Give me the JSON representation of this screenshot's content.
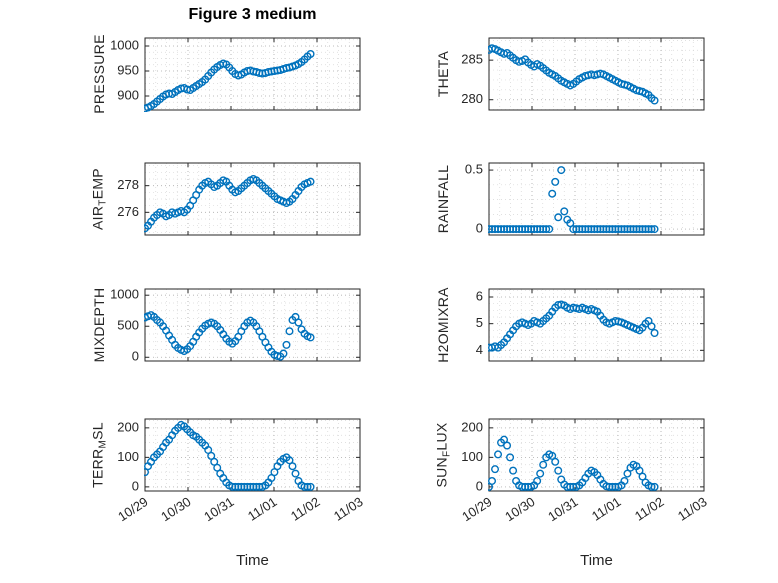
{
  "figure": {
    "title": "Figure 3 medium",
    "xlabel": "Time",
    "marker_color": "#0072BD",
    "axis_color": "#262626",
    "grid_color": "#b0b0b0",
    "minor_grid_color": "#d6d6d6"
  },
  "x_ticks": [
    0,
    1,
    2,
    3,
    4,
    5
  ],
  "x_tick_labels": [
    "10/29",
    "10/30",
    "10/31",
    "11/01",
    "11/02",
    "11/03"
  ],
  "x_days": [
    0.0,
    0.07,
    0.14,
    0.21,
    0.28,
    0.35,
    0.42,
    0.49,
    0.56,
    0.63,
    0.7,
    0.77,
    0.84,
    0.91,
    0.98,
    1.05,
    1.12,
    1.19,
    1.26,
    1.33,
    1.4,
    1.47,
    1.54,
    1.61,
    1.68,
    1.75,
    1.82,
    1.89,
    1.96,
    2.03,
    2.1,
    2.17,
    2.24,
    2.31,
    2.38,
    2.45,
    2.52,
    2.59,
    2.66,
    2.73,
    2.8,
    2.87,
    2.94,
    3.01,
    3.08,
    3.15,
    3.22,
    3.29,
    3.36,
    3.43,
    3.5,
    3.57,
    3.64,
    3.71,
    3.78,
    3.85
  ],
  "chart_data": [
    {
      "key": "pressure",
      "type": "scatter",
      "ylabel": "PRESSURE",
      "ylabel_segments": [
        {
          "text": "PRESSURE",
          "sub": false
        }
      ],
      "row": 0,
      "col": 0,
      "xlim": [
        0,
        5
      ],
      "ylim": [
        872,
        1016
      ],
      "yticks": [
        900,
        950,
        1000
      ],
      "show_xticklabels": false,
      "y": [
        875,
        877,
        880,
        884,
        889,
        894,
        899,
        903,
        905,
        904,
        908,
        912,
        915,
        916,
        913,
        912,
        916,
        920,
        924,
        928,
        933,
        940,
        947,
        953,
        958,
        962,
        965,
        963,
        957,
        950,
        944,
        941,
        943,
        947,
        950,
        951,
        949,
        948,
        946,
        945,
        946,
        948,
        949,
        950,
        951,
        952,
        954,
        956,
        957,
        959,
        961,
        964,
        968,
        973,
        979,
        984
      ]
    },
    {
      "key": "theta",
      "type": "scatter",
      "ylabel": "THETA",
      "ylabel_segments": [
        {
          "text": "THETA",
          "sub": false
        }
      ],
      "row": 0,
      "col": 1,
      "xlim": [
        0,
        5
      ],
      "ylim": [
        278.7,
        287.8
      ],
      "yticks": [
        280,
        285
      ],
      "show_xticklabels": false,
      "y": [
        286.3,
        286.5,
        286.4,
        286.2,
        286.0,
        285.8,
        285.9,
        285.6,
        285.3,
        285.0,
        284.8,
        284.9,
        285.1,
        284.7,
        284.4,
        284.2,
        284.5,
        284.3,
        284.0,
        283.7,
        283.4,
        283.2,
        283.0,
        282.7,
        282.4,
        282.2,
        282.0,
        281.8,
        282.0,
        282.3,
        282.6,
        282.8,
        283.0,
        283.1,
        283.2,
        283.1,
        283.2,
        283.3,
        283.2,
        283.0,
        282.8,
        282.6,
        282.4,
        282.2,
        282.0,
        281.9,
        281.8,
        281.6,
        281.4,
        281.2,
        281.1,
        281.0,
        280.8,
        280.6,
        280.2,
        279.9
      ]
    },
    {
      "key": "airtemp",
      "type": "scatter",
      "ylabel": "AIR_TEMP",
      "ylabel_segments": [
        {
          "text": "AIR",
          "sub": false
        },
        {
          "text": "T",
          "sub": true
        },
        {
          "text": "EMP",
          "sub": false
        }
      ],
      "row": 1,
      "col": 0,
      "xlim": [
        0,
        5
      ],
      "ylim": [
        274.3,
        279.7
      ],
      "yticks": [
        276,
        278
      ],
      "show_xticklabels": false,
      "y": [
        274.8,
        275.0,
        275.3,
        275.6,
        275.8,
        276.0,
        275.9,
        275.7,
        275.8,
        276.0,
        275.9,
        276.0,
        276.1,
        276.0,
        276.2,
        276.5,
        276.9,
        277.3,
        277.7,
        278.0,
        278.2,
        278.3,
        278.1,
        277.9,
        278.0,
        278.2,
        278.4,
        278.3,
        278.0,
        277.7,
        277.5,
        277.6,
        277.8,
        278.0,
        278.2,
        278.4,
        278.5,
        278.4,
        278.2,
        278.0,
        277.8,
        277.6,
        277.4,
        277.2,
        277.0,
        276.9,
        276.8,
        276.7,
        276.8,
        277.0,
        277.3,
        277.6,
        277.9,
        278.1,
        278.2,
        278.3
      ]
    },
    {
      "key": "rainfall",
      "type": "scatter",
      "ylabel": "RAINFALL",
      "ylabel_segments": [
        {
          "text": "RAINFALL",
          "sub": false
        }
      ],
      "row": 1,
      "col": 1,
      "xlim": [
        0,
        5
      ],
      "ylim": [
        -0.05,
        0.56
      ],
      "yticks": [
        0,
        0.5
      ],
      "show_xticklabels": false,
      "y": [
        0,
        0,
        0,
        0,
        0,
        0,
        0,
        0,
        0,
        0,
        0,
        0,
        0,
        0,
        0,
        0,
        0,
        0,
        0,
        0,
        0,
        0.3,
        0.4,
        0.1,
        0.5,
        0.15,
        0.08,
        0.05,
        0,
        0,
        0,
        0,
        0,
        0,
        0,
        0,
        0,
        0,
        0,
        0,
        0,
        0,
        0,
        0,
        0,
        0,
        0,
        0,
        0,
        0,
        0,
        0,
        0,
        0,
        0,
        0
      ]
    },
    {
      "key": "mixdepth",
      "type": "scatter",
      "ylabel": "MIXDEPTH",
      "ylabel_segments": [
        {
          "text": "MIXDEPTH",
          "sub": false
        }
      ],
      "row": 2,
      "col": 0,
      "xlim": [
        0,
        5
      ],
      "ylim": [
        -60,
        1100
      ],
      "yticks": [
        0,
        500,
        1000
      ],
      "show_xticklabels": false,
      "y": [
        640,
        660,
        680,
        650,
        600,
        560,
        500,
        430,
        350,
        280,
        200,
        150,
        120,
        100,
        130,
        180,
        250,
        330,
        400,
        460,
        510,
        540,
        560,
        540,
        500,
        440,
        370,
        300,
        250,
        220,
        260,
        330,
        420,
        500,
        560,
        590,
        560,
        500,
        420,
        330,
        240,
        160,
        90,
        40,
        20,
        10,
        60,
        200,
        420,
        600,
        650,
        560,
        450,
        380,
        340,
        320
      ]
    },
    {
      "key": "h2omixra",
      "type": "scatter",
      "ylabel": "H2OMIXRA",
      "ylabel_segments": [
        {
          "text": "H2OMIXRA",
          "sub": false
        }
      ],
      "row": 2,
      "col": 1,
      "xlim": [
        0,
        5
      ],
      "ylim": [
        3.6,
        6.3
      ],
      "yticks": [
        4,
        5,
        6
      ],
      "show_xticklabels": false,
      "y": [
        4.1,
        4.1,
        4.15,
        4.1,
        4.2,
        4.3,
        4.45,
        4.6,
        4.75,
        4.9,
        5.0,
        5.05,
        5.0,
        4.95,
        5.0,
        5.1,
        5.05,
        5.0,
        5.1,
        5.2,
        5.3,
        5.45,
        5.6,
        5.7,
        5.72,
        5.68,
        5.6,
        5.55,
        5.6,
        5.58,
        5.55,
        5.6,
        5.55,
        5.5,
        5.55,
        5.5,
        5.45,
        5.3,
        5.15,
        5.05,
        5.0,
        5.05,
        5.1,
        5.08,
        5.05,
        5.0,
        4.95,
        4.9,
        4.85,
        4.8,
        4.75,
        4.85,
        5.0,
        5.1,
        4.9,
        4.65
      ]
    },
    {
      "key": "terrmsl",
      "type": "scatter",
      "ylabel": "TERR_MSL",
      "ylabel_segments": [
        {
          "text": "TERR",
          "sub": false
        },
        {
          "text": "M",
          "sub": true
        },
        {
          "text": "SL",
          "sub": false
        }
      ],
      "row": 3,
      "col": 0,
      "xlim": [
        0,
        5
      ],
      "ylim": [
        -14,
        230
      ],
      "yticks": [
        0,
        100,
        200
      ],
      "show_xticklabels": true,
      "y": [
        50,
        70,
        85,
        100,
        110,
        120,
        135,
        150,
        160,
        175,
        190,
        200,
        210,
        205,
        195,
        185,
        175,
        170,
        160,
        150,
        140,
        125,
        105,
        85,
        65,
        45,
        30,
        15,
        5,
        0,
        0,
        0,
        0,
        0,
        0,
        0,
        0,
        0,
        0,
        0,
        5,
        15,
        30,
        50,
        70,
        85,
        95,
        100,
        90,
        70,
        45,
        20,
        5,
        0,
        0,
        0
      ]
    },
    {
      "key": "sunflux",
      "type": "scatter",
      "ylabel": "SUN_FLUX",
      "ylabel_segments": [
        {
          "text": "SUN",
          "sub": false
        },
        {
          "text": "F",
          "sub": true
        },
        {
          "text": "LUX",
          "sub": false
        }
      ],
      "row": 3,
      "col": 1,
      "xlim": [
        0,
        5
      ],
      "ylim": [
        -14,
        230
      ],
      "yticks": [
        0,
        100,
        200
      ],
      "show_xticklabels": true,
      "y": [
        0,
        20,
        60,
        110,
        150,
        160,
        140,
        100,
        55,
        20,
        5,
        0,
        0,
        0,
        0,
        5,
        20,
        45,
        75,
        100,
        110,
        105,
        85,
        55,
        25,
        8,
        0,
        0,
        0,
        0,
        5,
        15,
        30,
        45,
        55,
        50,
        40,
        25,
        10,
        2,
        0,
        0,
        0,
        0,
        5,
        20,
        45,
        65,
        75,
        70,
        55,
        35,
        15,
        5,
        0,
        0
      ]
    }
  ]
}
